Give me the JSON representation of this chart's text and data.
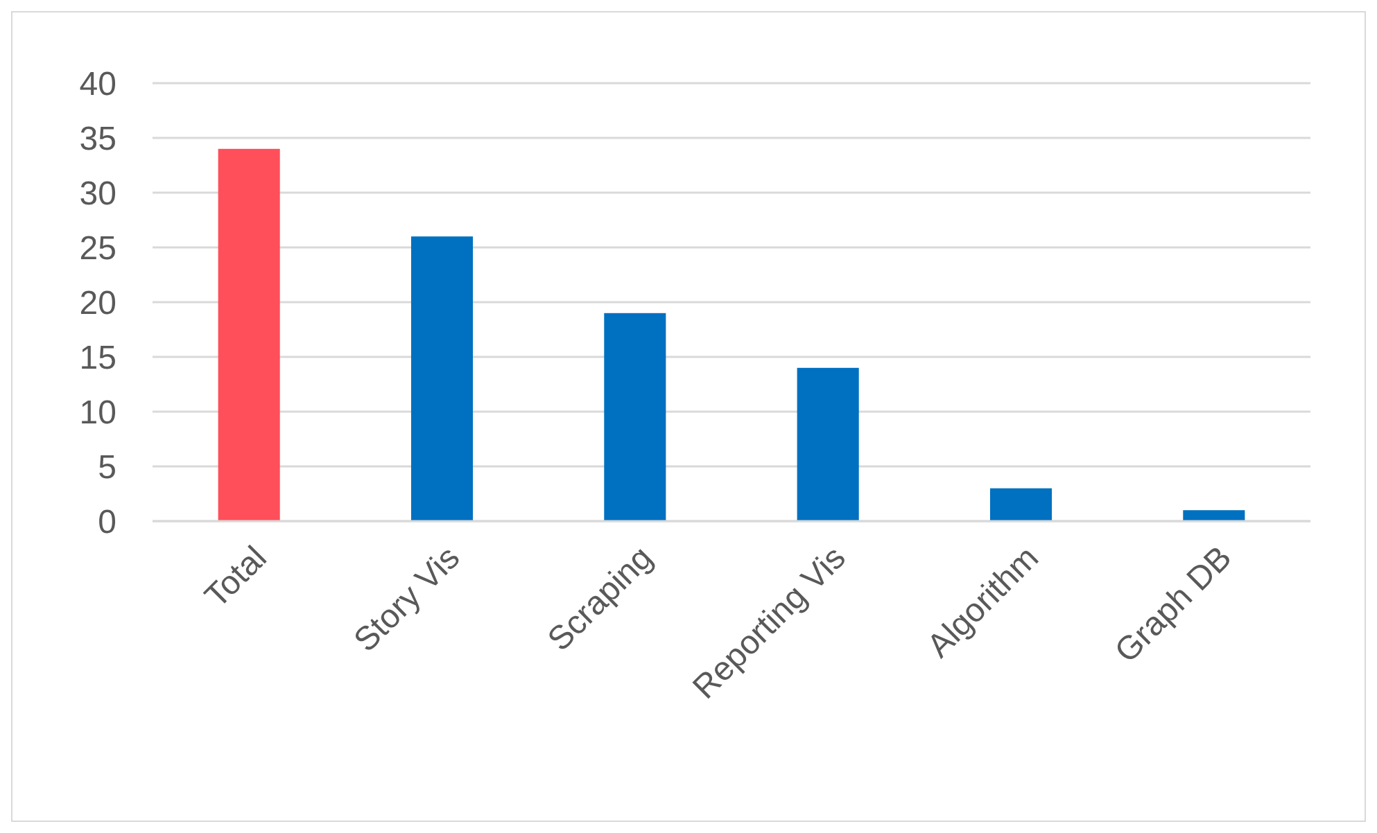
{
  "chart_data": {
    "type": "bar",
    "categories": [
      "Total",
      "Story Vis",
      "Scraping",
      "Reporting Vis",
      "Algorithm",
      "Graph DB"
    ],
    "values": [
      34,
      26,
      19,
      14,
      3,
      1
    ],
    "colors": [
      "#ff4f5a",
      "#0070c0",
      "#0070c0",
      "#0070c0",
      "#0070c0",
      "#0070c0"
    ],
    "ylim": [
      0,
      40
    ],
    "yticks": [
      0,
      5,
      10,
      15,
      20,
      25,
      30,
      35,
      40
    ],
    "grid": "y"
  }
}
